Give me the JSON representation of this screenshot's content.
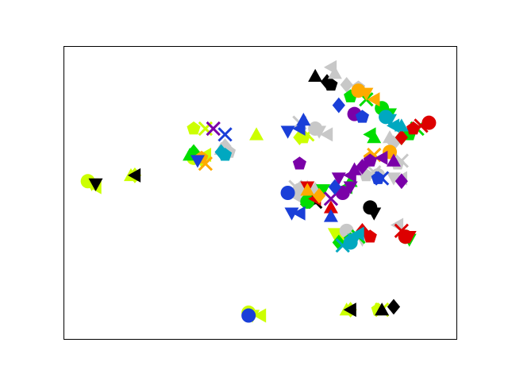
{
  "figure": {
    "background": "#ffffff"
  },
  "chart_data": {
    "type": "scatter",
    "title": "",
    "xlabel": "",
    "ylabel": "",
    "xlim": [
      0,
      100
    ],
    "ylim": [
      0,
      100
    ],
    "ticks_visible": false,
    "grid": false,
    "legend": "none",
    "marker_styles": {
      "lime": {
        "color": "#ccff00"
      },
      "black": {
        "color": "#000000"
      },
      "gray": {
        "color": "#c8c8c8"
      },
      "green": {
        "color": "#00dd00"
      },
      "red": {
        "color": "#dd0000"
      },
      "orange": {
        "color": "#ffaa00"
      },
      "purple": {
        "color": "#7a00a8"
      },
      "teal": {
        "color": "#00a8c0"
      },
      "blue": {
        "color": "#1a3fd8"
      }
    },
    "series": [
      {
        "color": "#ccff00",
        "points": [
          [
            6,
            54
          ],
          [
            7,
            53
          ],
          [
            8,
            52
          ],
          [
            17,
            56
          ],
          [
            18,
            56
          ],
          [
            33,
            72
          ],
          [
            36,
            72
          ],
          [
            33,
            62
          ],
          [
            35,
            61
          ],
          [
            36,
            63
          ],
          [
            49,
            70
          ],
          [
            60,
            69
          ],
          [
            61,
            69
          ],
          [
            62,
            70
          ],
          [
            47,
            9
          ],
          [
            48,
            8
          ],
          [
            50,
            8
          ],
          [
            72,
            10
          ],
          [
            73,
            10
          ],
          [
            80,
            10
          ],
          [
            81,
            10
          ],
          [
            71,
            35
          ],
          [
            69,
            36
          ]
        ]
      },
      {
        "color": "#000000",
        "points": [
          [
            8,
            53
          ],
          [
            18,
            56
          ],
          [
            64,
            90
          ],
          [
            67,
            88
          ],
          [
            68,
            87
          ],
          [
            62,
            48
          ],
          [
            78,
            45
          ],
          [
            79,
            43
          ],
          [
            73,
            10
          ],
          [
            81,
            10
          ],
          [
            84,
            11
          ],
          [
            63,
            48
          ],
          [
            64,
            47
          ]
        ]
      },
      {
        "color": "#c8c8c8",
        "points": [
          [
            68,
            93
          ],
          [
            69,
            91
          ],
          [
            72,
            87
          ],
          [
            75,
            86
          ],
          [
            60,
            74
          ],
          [
            64,
            72
          ],
          [
            65,
            71
          ],
          [
            67,
            70
          ],
          [
            40,
            65
          ],
          [
            41,
            66
          ],
          [
            42,
            64
          ],
          [
            59,
            52
          ],
          [
            60,
            51
          ],
          [
            61,
            50
          ],
          [
            59,
            49
          ],
          [
            62,
            52
          ],
          [
            64,
            51
          ],
          [
            77,
            56
          ],
          [
            79,
            57
          ],
          [
            80,
            56
          ],
          [
            84,
            55
          ],
          [
            86,
            55
          ],
          [
            83,
            69
          ],
          [
            84,
            67
          ],
          [
            85,
            60
          ],
          [
            86,
            61
          ],
          [
            72,
            37
          ],
          [
            76,
            34
          ],
          [
            85,
            39
          ]
        ]
      },
      {
        "color": "#00dd00",
        "points": [
          [
            32,
            63
          ],
          [
            33,
            64
          ],
          [
            73,
            83
          ],
          [
            77,
            82
          ],
          [
            81,
            79
          ],
          [
            83,
            77
          ],
          [
            78,
            70
          ],
          [
            79,
            69
          ],
          [
            86,
            69
          ],
          [
            88,
            70
          ],
          [
            90,
            72
          ],
          [
            62,
            47
          ],
          [
            66,
            51
          ],
          [
            72,
            52
          ],
          [
            73,
            54
          ],
          [
            70,
            33
          ],
          [
            73,
            34
          ],
          [
            75,
            35
          ],
          [
            87,
            35
          ],
          [
            88,
            34
          ]
        ]
      },
      {
        "color": "#dd0000",
        "points": [
          [
            86,
            69
          ],
          [
            89,
            72
          ],
          [
            91,
            73
          ],
          [
            93,
            74
          ],
          [
            62,
            52
          ],
          [
            64,
            48
          ],
          [
            68,
            45
          ],
          [
            76,
            37
          ],
          [
            78,
            35
          ],
          [
            86,
            37
          ],
          [
            87,
            35
          ],
          [
            88,
            35
          ]
        ]
      },
      {
        "color": "#ffaa00",
        "points": [
          [
            35,
            62
          ],
          [
            36,
            60
          ],
          [
            75,
            85
          ],
          [
            77,
            84
          ],
          [
            79,
            82
          ],
          [
            62,
            51
          ],
          [
            65,
            49
          ],
          [
            78,
            62
          ],
          [
            79,
            63
          ],
          [
            83,
            64
          ]
        ]
      },
      {
        "color": "#7a00a8",
        "points": [
          [
            38,
            72
          ],
          [
            74,
            77
          ],
          [
            70,
            55
          ],
          [
            73,
            56
          ],
          [
            74,
            58
          ],
          [
            76,
            59
          ],
          [
            78,
            61
          ],
          [
            68,
            48
          ],
          [
            71,
            50
          ],
          [
            73,
            52
          ],
          [
            81,
            62
          ],
          [
            84,
            61
          ],
          [
            86,
            54
          ],
          [
            60,
            60
          ]
        ]
      },
      {
        "color": "#00a8c0",
        "points": [
          [
            82,
            76
          ],
          [
            83,
            75
          ],
          [
            84,
            73
          ],
          [
            86,
            73
          ],
          [
            40,
            64
          ],
          [
            41,
            63
          ],
          [
            71,
            32
          ],
          [
            73,
            33
          ],
          [
            74,
            34
          ],
          [
            75,
            36
          ]
        ]
      },
      {
        "color": "#1a3fd8",
        "points": [
          [
            57,
            71
          ],
          [
            60,
            72
          ],
          [
            61,
            75
          ],
          [
            70,
            80
          ],
          [
            76,
            76
          ],
          [
            41,
            70
          ],
          [
            57,
            50
          ],
          [
            58,
            43
          ],
          [
            60,
            43
          ],
          [
            68,
            42
          ],
          [
            69,
            52
          ],
          [
            80,
            55
          ],
          [
            81,
            55
          ],
          [
            47,
            8
          ],
          [
            34,
            61
          ]
        ]
      }
    ]
  }
}
